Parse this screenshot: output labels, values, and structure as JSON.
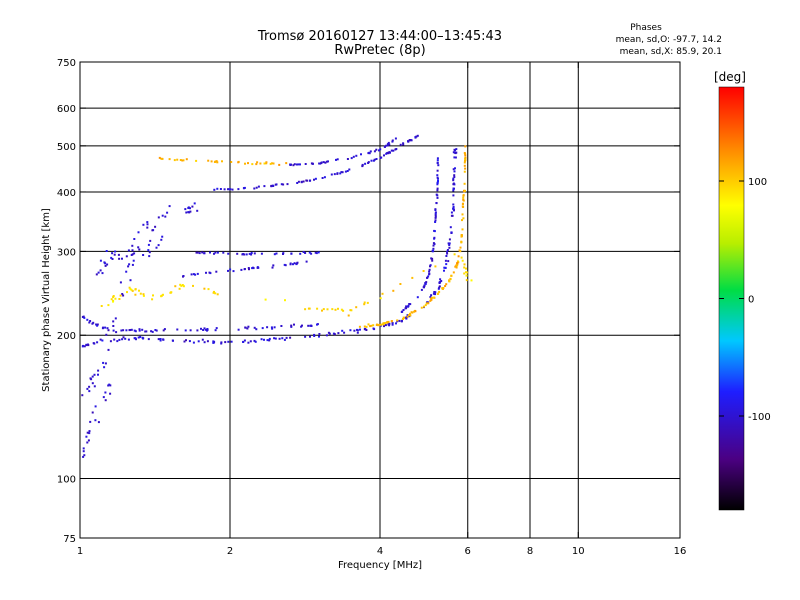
{
  "chart_data": {
    "type": "scatter",
    "title": "Tromsø 20160127 13:44:00–13:45:43",
    "subtitle": "RwPretec (8p)",
    "xlabel": "Frequency [MHz]",
    "ylabel": "Stationary phase Virtual Height [km]",
    "x_scale": "log",
    "y_scale": "log",
    "xlim": [
      1,
      16
    ],
    "ylim": [
      75,
      750
    ],
    "xticks": [
      1,
      2,
      4,
      6,
      8,
      10,
      16
    ],
    "yticks": [
      75,
      100,
      200,
      300,
      400,
      500,
      600,
      750
    ],
    "x_grid_lines": [
      2,
      4,
      6,
      8,
      10
    ],
    "y_grid_lines": [
      100,
      200,
      300,
      400,
      500,
      600
    ],
    "phases_box": {
      "heading": "Phases",
      "line_o": "mean, sd,O: -97.7, 14.2",
      "line_x": "mean, sd,X:  85.9, 20.1"
    },
    "colorbar": {
      "label": "[deg]",
      "range": [
        -180,
        180
      ],
      "ticks": [
        -100,
        0,
        100
      ]
    },
    "traces": [
      {
        "name": "",
        "phase": -100,
        "spread": 0.03,
        "points": [
          [
            1.0,
            190
          ],
          [
            1.1,
            196
          ],
          [
            1.3,
            198
          ],
          [
            1.6,
            196
          ],
          [
            1.9,
            194
          ],
          [
            2.3,
            196
          ],
          [
            2.8,
            199
          ],
          [
            3.3,
            203
          ],
          [
            3.8,
            207
          ],
          [
            4.3,
            214
          ],
          [
            4.8,
            228
          ],
          [
            5.2,
            250
          ],
          [
            5.4,
            280
          ],
          [
            5.5,
            320
          ],
          [
            5.6,
            380
          ],
          [
            5.6,
            440
          ],
          [
            5.65,
            500
          ]
        ]
      },
      {
        "name": "",
        "phase": -100,
        "spread": 0.03,
        "points": [
          [
            1.0,
            220
          ],
          [
            1.1,
            208
          ],
          [
            1.3,
            205
          ],
          [
            1.6,
            207
          ],
          [
            2.0,
            207
          ],
          [
            2.5,
            209
          ],
          [
            3.0,
            211
          ]
        ]
      },
      {
        "name": "",
        "phase": 110,
        "spread": 0.02,
        "points": [
          [
            3.6,
            209
          ],
          [
            4.0,
            212
          ],
          [
            4.4,
            218
          ],
          [
            4.8,
            228
          ],
          [
            5.2,
            245
          ],
          [
            5.5,
            262
          ],
          [
            5.7,
            285
          ],
          [
            5.8,
            320
          ],
          [
            5.85,
            380
          ],
          [
            5.9,
            450
          ],
          [
            5.9,
            500
          ]
        ]
      },
      {
        "name": "",
        "phase": -100,
        "spread": 0.02,
        "points": [
          [
            4.4,
            225
          ],
          [
            4.8,
            245
          ],
          [
            5.0,
            270
          ],
          [
            5.1,
            310
          ],
          [
            5.15,
            360
          ],
          [
            5.2,
            420
          ],
          [
            5.2,
            470
          ]
        ]
      },
      {
        "name": "",
        "phase": -100,
        "spread": 0.02,
        "points": [
          [
            1.6,
            268
          ],
          [
            2.0,
            275
          ],
          [
            2.4,
            280
          ],
          [
            3.0,
            288
          ]
        ]
      },
      {
        "name": "",
        "phase": -100,
        "spread": 0.02,
        "points": [
          [
            1.7,
            300
          ],
          [
            2.0,
            298
          ],
          [
            2.5,
            298
          ],
          [
            3.0,
            300
          ]
        ]
      },
      {
        "name": "",
        "phase": -100,
        "spread": 0.02,
        "points": [
          [
            1.8,
            405
          ],
          [
            2.2,
            410
          ],
          [
            2.6,
            418
          ],
          [
            3.0,
            428
          ],
          [
            3.5,
            448
          ],
          [
            4.0,
            475
          ],
          [
            4.4,
            505
          ],
          [
            4.8,
            530
          ]
        ]
      },
      {
        "name": "",
        "phase": -100,
        "spread": 0.02,
        "points": [
          [
            2.6,
            458
          ],
          [
            3.0,
            462
          ],
          [
            3.5,
            474
          ],
          [
            4.0,
            495
          ],
          [
            4.3,
            520
          ]
        ]
      },
      {
        "name": "",
        "phase": 110,
        "spread": 0.02,
        "points": [
          [
            1.4,
            472
          ],
          [
            1.8,
            466
          ],
          [
            2.2,
            462
          ],
          [
            2.6,
            460
          ]
        ]
      },
      {
        "name": "",
        "phase": -100,
        "spread": 0.15,
        "points": [
          [
            1.0,
            150
          ],
          [
            1.1,
            170
          ],
          [
            1.2,
            240
          ],
          [
            1.3,
            330
          ],
          [
            1.5,
            360
          ],
          [
            1.7,
            380
          ]
        ]
      },
      {
        "name": "",
        "phase": -100,
        "spread": 0.18,
        "points": [
          [
            1.0,
            260
          ],
          [
            1.15,
            290
          ],
          [
            1.3,
            300
          ],
          [
            1.5,
            320
          ]
        ]
      },
      {
        "name": "",
        "phase": -100,
        "spread": 0.12,
        "points": [
          [
            1.0,
            110
          ],
          [
            1.05,
            130
          ],
          [
            1.15,
            160
          ]
        ]
      },
      {
        "name": "",
        "phase": 95,
        "spread": 0.07,
        "points": [
          [
            1.1,
            230
          ],
          [
            1.25,
            250
          ],
          [
            1.4,
            240
          ],
          [
            1.6,
            255
          ],
          [
            3.0,
            230
          ],
          [
            3.5,
            225
          ],
          [
            5.8,
            300
          ],
          [
            6.0,
            260
          ]
        ]
      }
    ]
  }
}
